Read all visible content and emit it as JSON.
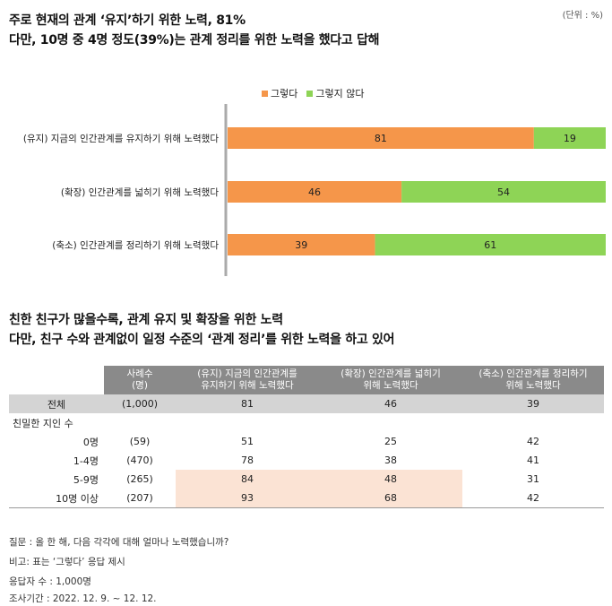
{
  "unit": "(단위 : %)",
  "title_line1": "주로 현재의 관계 ‘유지’하기 위한 노력, 81%",
  "title_line2": "다만, 10명 중 4명 정도(39%)는 관계 정리를 위한 노력을 했다고 답해",
  "colors": {
    "yes": "#f5964a",
    "no": "#8ed456",
    "axis": "#aaaaaa",
    "header": "#8a8a8a",
    "total_row": "#d4d4d4",
    "highlight": "#fbe3d4"
  },
  "chart_data": {
    "type": "bar",
    "orientation": "horizontal",
    "stacked": true,
    "categories": [
      "(유지) 지금의 인간관계를 유지하기 위해 노력했다",
      "(확장) 인간관계를 넓히기 위해 노력했다",
      "(축소) 인간관계를 정리하기 위해 노력했다"
    ],
    "series": [
      {
        "name": "그렇다",
        "values": [
          81,
          46,
          39
        ]
      },
      {
        "name": "그렇지 않다",
        "values": [
          19,
          54,
          61
        ]
      }
    ],
    "xlim": [
      0,
      100
    ],
    "legend": "top-center",
    "grid": false
  },
  "section2_line1": "친한 친구가 많을수록, 관계 유지 및 확장을 위한 노력",
  "section2_line2": "다만, 친구 수와 관계없이 일정 수준의 ‘관계 정리’를 위한 노력을 하고 있어",
  "table": {
    "headers": [
      "",
      "사례수\n(명)",
      "(유지) 지금의 인간관계를\n유지하기 위해 노력했다",
      "(확장) 인간관계를 넓히기\n위해 노력했다",
      "(축소) 인간관계를 정리하기\n위해 노력했다"
    ],
    "total": {
      "label": "전체",
      "n": "(1,000)",
      "values": [
        "81",
        "46",
        "39"
      ]
    },
    "group_label": "친밀한 지인 수",
    "rows": [
      {
        "label": "0명",
        "n": "(59)",
        "values": [
          "51",
          "25",
          "42"
        ],
        "highlight": [
          false,
          false,
          false
        ]
      },
      {
        "label": "1-4명",
        "n": "(470)",
        "values": [
          "78",
          "38",
          "41"
        ],
        "highlight": [
          false,
          false,
          false
        ]
      },
      {
        "label": "5-9명",
        "n": "(265)",
        "values": [
          "84",
          "48",
          "31"
        ],
        "highlight": [
          true,
          true,
          false
        ]
      },
      {
        "label": "10명 이상",
        "n": "(207)",
        "values": [
          "93",
          "68",
          "42"
        ],
        "highlight": [
          true,
          true,
          false
        ]
      }
    ]
  },
  "notes": [
    "질문 : 올 한 해, 다음 각각에 대해 얼마나 노력했습니까?",
    "비고: 표는 ‘그렇다’ 응답 제시",
    "응답자 수 : 1,000명",
    "조사기간 : 2022. 12. 9. ~ 12. 12."
  ]
}
